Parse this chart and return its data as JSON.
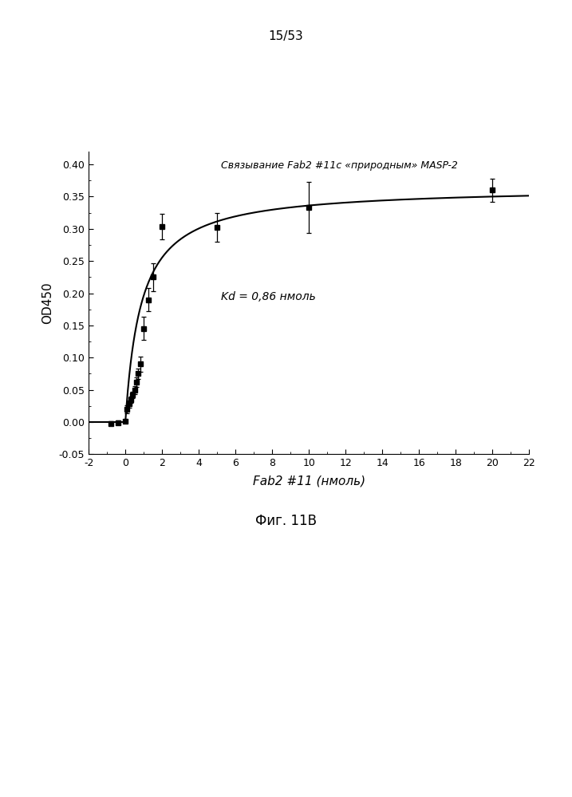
{
  "title_page": "15/53",
  "chart_title": "Связывание Fab2 #11c «природным» MASP-2",
  "annotation": "Kd = 0,86 нмоль",
  "xlabel": "Fab2 #11 (нмоль)",
  "ylabel": "OD450",
  "fig_label": "Фиг. 11В",
  "xlim": [
    -2,
    22
  ],
  "ylim": [
    -0.05,
    0.42
  ],
  "xticks": [
    -2,
    0,
    2,
    4,
    6,
    8,
    10,
    12,
    14,
    16,
    18,
    20,
    22
  ],
  "yticks": [
    -0.05,
    0.0,
    0.05,
    0.1,
    0.15,
    0.2,
    0.25,
    0.3,
    0.35,
    0.4
  ],
  "data_x": [
    -0.8,
    -0.4,
    0.0,
    0.1,
    0.2,
    0.3,
    0.4,
    0.5,
    0.6,
    0.7,
    0.8,
    1.0,
    1.25,
    1.5,
    2.0,
    5.0,
    10.0,
    20.0
  ],
  "data_y": [
    -0.002,
    -0.001,
    0.001,
    0.02,
    0.028,
    0.035,
    0.042,
    0.05,
    0.062,
    0.075,
    0.09,
    0.145,
    0.19,
    0.225,
    0.303,
    0.302,
    0.333,
    0.36
  ],
  "data_yerr": [
    0.003,
    0.003,
    0.002,
    0.006,
    0.006,
    0.005,
    0.005,
    0.006,
    0.007,
    0.008,
    0.012,
    0.018,
    0.018,
    0.022,
    0.02,
    0.022,
    0.04,
    0.018
  ],
  "Kd": 0.86,
  "Bmax": 0.365,
  "curve_color": "#000000",
  "marker_color": "#000000",
  "background_color": "#ffffff"
}
